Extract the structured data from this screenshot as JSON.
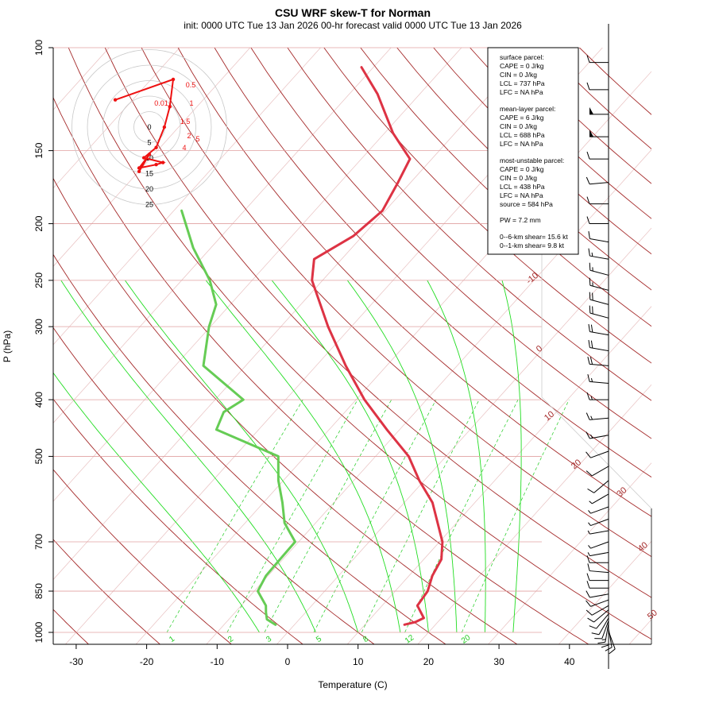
{
  "title": "CSU WRF skew-T for Norman",
  "subtitle": "init: 0000 UTC Tue 13 Jan 2026     00-hr forecast valid 0000 UTC Tue 13 Jan 2026",
  "colors": {
    "temperature": "#dd3344",
    "dewpoint": "#66cc55",
    "dry_adiabat": "#a52a2a",
    "moist_adiabat": "#22dd22",
    "mixing_ratio": "#22cc22",
    "isobar": "#e0a0a0",
    "isotherm": "#e8c0c0",
    "hodograph": "#ee1111"
  },
  "chart_data": {
    "type": "line",
    "xlabel": "Temperature (C)",
    "ylabel": "P (hPa)",
    "xlim": [
      -33,
      52
    ],
    "ylim": [
      1000,
      100
    ],
    "y_scale": "log",
    "x_ticks": [
      -30,
      -20,
      -10,
      0,
      10,
      20,
      30,
      40
    ],
    "y_ticks": [
      100,
      150,
      200,
      250,
      300,
      400,
      500,
      700,
      850,
      1000
    ],
    "isotherm_labels": [
      {
        "label": "-10",
        "t": -10,
        "p": 250
      },
      {
        "label": "0",
        "t": 0,
        "p": 330
      },
      {
        "label": "10",
        "t": 10,
        "p": 430
      },
      {
        "label": "20",
        "t": 20,
        "p": 520
      },
      {
        "label": "30",
        "t": 30,
        "p": 580
      },
      {
        "label": "40",
        "t": 40,
        "p": 720
      },
      {
        "label": "50",
        "t": 50,
        "p": 940
      }
    ],
    "mixing_ratio_labels": [
      "1",
      "2",
      "3",
      "5",
      "8",
      "12",
      "20"
    ],
    "series": [
      {
        "name": "Temperature",
        "points": [
          {
            "p": 970,
            "t": 15.6
          },
          {
            "p": 960,
            "t": 16.8
          },
          {
            "p": 945,
            "t": 17.5
          },
          {
            "p": 925,
            "t": 16.4
          },
          {
            "p": 900,
            "t": 15.0
          },
          {
            "p": 850,
            "t": 14.6
          },
          {
            "p": 800,
            "t": 13.3
          },
          {
            "p": 750,
            "t": 12.5
          },
          {
            "p": 700,
            "t": 10.4
          },
          {
            "p": 600,
            "t": 4.0
          },
          {
            "p": 550,
            "t": -0.7
          },
          {
            "p": 500,
            "t": -5.3
          },
          {
            "p": 450,
            "t": -11.8
          },
          {
            "p": 400,
            "t": -18.8
          },
          {
            "p": 350,
            "t": -25.8
          },
          {
            "p": 300,
            "t": -33.3
          },
          {
            "p": 250,
            "t": -41.5
          },
          {
            "p": 230,
            "t": -43.9
          },
          {
            "p": 210,
            "t": -41.3
          },
          {
            "p": 190,
            "t": -40.4
          },
          {
            "p": 170,
            "t": -41.8
          },
          {
            "p": 155,
            "t": -43.1
          },
          {
            "p": 140,
            "t": -48.8
          },
          {
            "p": 120,
            "t": -56.0
          },
          {
            "p": 108,
            "t": -61.7
          }
        ]
      },
      {
        "name": "Dewpoint",
        "points": [
          {
            "p": 970,
            "t": -2.7
          },
          {
            "p": 950,
            "t": -4.6
          },
          {
            "p": 925,
            "t": -5.6
          },
          {
            "p": 900,
            "t": -6.5
          },
          {
            "p": 850,
            "t": -9.5
          },
          {
            "p": 800,
            "t": -10.3
          },
          {
            "p": 750,
            "t": -10.4
          },
          {
            "p": 700,
            "t": -10.5
          },
          {
            "p": 650,
            "t": -14.4
          },
          {
            "p": 600,
            "t": -17.3
          },
          {
            "p": 550,
            "t": -20.7
          },
          {
            "p": 500,
            "t": -23.8
          },
          {
            "p": 450,
            "t": -36.0
          },
          {
            "p": 420,
            "t": -37.2
          },
          {
            "p": 400,
            "t": -36.0
          },
          {
            "p": 350,
            "t": -46.0
          },
          {
            "p": 300,
            "t": -50.2
          },
          {
            "p": 275,
            "t": -52.0
          },
          {
            "p": 250,
            "t": -56.0
          },
          {
            "p": 220,
            "t": -62.5
          },
          {
            "p": 190,
            "t": -68.9
          }
        ]
      }
    ]
  },
  "hodograph": {
    "ring_labels": [
      "0",
      "5",
      "10",
      "15",
      "20",
      "25"
    ],
    "height_labels": [
      "0.5",
      "1",
      "1.5",
      "2",
      "4",
      "5",
      "0.01"
    ],
    "points": [
      {
        "u": -5.0,
        "v": 4.0
      },
      {
        "u": 3.5,
        "v": 7.0
      },
      {
        "u": 3.0,
        "v": 3.0
      },
      {
        "u": 2.2,
        "v": 0.0
      },
      {
        "u": 1.0,
        "v": -3.0
      },
      {
        "u": -0.8,
        "v": -4.5
      },
      {
        "u": 2.0,
        "v": -5.2
      },
      {
        "u": 1.0,
        "v": -5.5
      },
      {
        "u": -1.5,
        "v": -6.0
      },
      {
        "u": 0.0,
        "v": -4.0
      },
      {
        "u": -1.5,
        "v": -6.5
      }
    ]
  },
  "winds": [
    {
      "p": 995,
      "spd": 10,
      "dir": 160
    },
    {
      "p": 985,
      "spd": 12,
      "dir": 170
    },
    {
      "p": 975,
      "spd": 12,
      "dir": 180
    },
    {
      "p": 965,
      "spd": 13,
      "dir": 190
    },
    {
      "p": 955,
      "spd": 12,
      "dir": 200
    },
    {
      "p": 945,
      "spd": 10,
      "dir": 210
    },
    {
      "p": 930,
      "spd": 10,
      "dir": 220
    },
    {
      "p": 915,
      "spd": 10,
      "dir": 230
    },
    {
      "p": 900,
      "spd": 12,
      "dir": 240
    },
    {
      "p": 880,
      "spd": 12,
      "dir": 250
    },
    {
      "p": 860,
      "spd": 10,
      "dir": 260
    },
    {
      "p": 840,
      "spd": 10,
      "dir": 270
    },
    {
      "p": 815,
      "spd": 10,
      "dir": 270
    },
    {
      "p": 790,
      "spd": 8,
      "dir": 275
    },
    {
      "p": 760,
      "spd": 8,
      "dir": 270
    },
    {
      "p": 730,
      "spd": 7,
      "dir": 260
    },
    {
      "p": 700,
      "spd": 5,
      "dir": 250
    },
    {
      "p": 670,
      "spd": 5,
      "dir": 260
    },
    {
      "p": 640,
      "spd": 5,
      "dir": 250
    },
    {
      "p": 610,
      "spd": 5,
      "dir": 250
    },
    {
      "p": 580,
      "spd": 7,
      "dir": 240
    },
    {
      "p": 550,
      "spd": 10,
      "dir": 230
    },
    {
      "p": 520,
      "spd": 10,
      "dir": 240
    },
    {
      "p": 490,
      "spd": 10,
      "dir": 250
    },
    {
      "p": 460,
      "spd": 15,
      "dir": 260
    },
    {
      "p": 430,
      "spd": 17,
      "dir": 265
    },
    {
      "p": 400,
      "spd": 17,
      "dir": 270
    },
    {
      "p": 375,
      "spd": 17,
      "dir": 275
    },
    {
      "p": 350,
      "spd": 20,
      "dir": 275
    },
    {
      "p": 330,
      "spd": 20,
      "dir": 280
    },
    {
      "p": 310,
      "spd": 20,
      "dir": 280
    },
    {
      "p": 290,
      "spd": 22,
      "dir": 285
    },
    {
      "p": 275,
      "spd": 20,
      "dir": 285
    },
    {
      "p": 260,
      "spd": 15,
      "dir": 285
    },
    {
      "p": 245,
      "spd": 15,
      "dir": 285
    },
    {
      "p": 230,
      "spd": 15,
      "dir": 280
    },
    {
      "p": 215,
      "spd": 10,
      "dir": 280
    },
    {
      "p": 200,
      "spd": 10,
      "dir": 270
    },
    {
      "p": 185,
      "spd": 10,
      "dir": 270
    },
    {
      "p": 170,
      "spd": 10,
      "dir": 265
    },
    {
      "p": 155,
      "spd": 10,
      "dir": 270
    },
    {
      "p": 142,
      "spd": 50,
      "dir": 270
    },
    {
      "p": 130,
      "spd": 50,
      "dir": 270
    },
    {
      "p": 118,
      "spd": 10,
      "dir": 270
    },
    {
      "p": 106,
      "spd": 10,
      "dir": 270
    }
  ],
  "info_box": {
    "surface_heading": "surface parcel:",
    "surface_cape": "CAPE = 0 J/kg",
    "surface_cin": "CIN = 0 J/kg",
    "surface_lcl": "LCL = 737 hPa",
    "surface_lfc": "LFC = NA hPa",
    "mean_heading": "mean-layer parcel:",
    "mean_cape": "CAPE = 6 J/kg",
    "mean_cin": "CIN = 0 J/kg",
    "mean_lcl": "LCL = 688 hPa",
    "mean_lfc": "LFC = NA hPa",
    "mu_heading": "most-unstable parcel:",
    "mu_cape": "CAPE = 0 J/kg",
    "mu_cin": "CIN = 0 J/kg",
    "mu_lcl": "LCL = 438 hPa",
    "mu_lfc": "LFC = NA hPa",
    "mu_source": "source = 584 hPa",
    "pw": "PW =  7.2 mm",
    "shear_06": "0--6-km shear= 15.6 kt",
    "shear_01": "0--1-km shear= 9.8 kt"
  }
}
